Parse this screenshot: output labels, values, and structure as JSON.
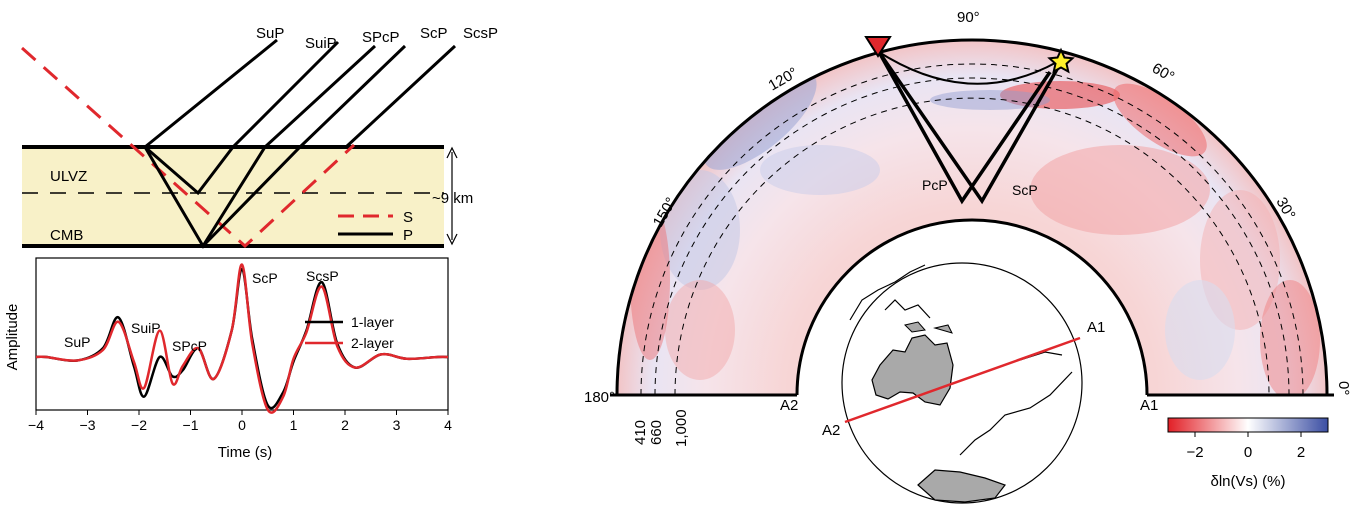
{
  "left_schematic": {
    "rays": [
      "SuP",
      "SuiP",
      "SPcP",
      "ScP",
      "ScsP"
    ],
    "layer_labels": {
      "ulvz": "ULVZ",
      "cmb": "CMB",
      "thickness": "~9 km"
    },
    "legend": {
      "s": "S",
      "p": "P"
    }
  },
  "waveform": {
    "ylabel": "Amplitude",
    "xlabel": "Time (s)",
    "xticks": [
      "−4",
      "−3",
      "−2",
      "−1",
      "0",
      "1",
      "2",
      "3",
      "4"
    ],
    "phase_labels": {
      "sup": "SuP",
      "suip": "SuiP",
      "spcp": "SPcP",
      "scp": "ScP",
      "scsp": "ScsP"
    },
    "legend": {
      "one_layer": "1-layer",
      "two_layer": "2-layer"
    },
    "colors": {
      "one_layer": "#000000",
      "two_layer": "#e0282d"
    }
  },
  "chart_data": {
    "type": "line",
    "xlabel": "Time (s)",
    "ylabel": "Amplitude",
    "xlim": [
      -4,
      4
    ],
    "x": [
      -3.8,
      -3.2,
      -2.7,
      -2.4,
      -2.1,
      -1.9,
      -1.6,
      -1.35,
      -1.15,
      -0.85,
      -0.55,
      -0.2,
      0.0,
      0.2,
      0.5,
      0.8,
      1.0,
      1.25,
      1.55,
      1.85,
      2.2,
      2.7,
      3.2,
      3.8
    ],
    "series": [
      {
        "name": "1-layer",
        "values": [
          0.0,
          -0.04,
          0.1,
          0.45,
          -0.1,
          -0.45,
          0.0,
          -0.22,
          -0.15,
          0.1,
          -0.25,
          0.3,
          1.0,
          0.2,
          -0.55,
          -0.4,
          -0.05,
          0.3,
          0.85,
          0.15,
          -0.12,
          0.03,
          -0.02,
          0.0
        ]
      },
      {
        "name": "2-layer",
        "values": [
          0.0,
          -0.04,
          0.08,
          0.4,
          -0.05,
          -0.35,
          0.3,
          -0.3,
          -0.1,
          0.1,
          -0.25,
          0.3,
          1.05,
          0.15,
          -0.6,
          -0.45,
          -0.02,
          0.28,
          0.8,
          0.12,
          -0.12,
          0.03,
          -0.02,
          0.0
        ]
      }
    ]
  },
  "cross_section": {
    "angle_labels": [
      "180°",
      "150°",
      "120°",
      "90°",
      "60°",
      "30°",
      "0°"
    ],
    "depth_labels": [
      "410",
      "660",
      "1,000"
    ],
    "endpoints": {
      "left": "A2",
      "right": "A1"
    },
    "phase_labels": {
      "pcp": "PcP",
      "scp": "ScP"
    },
    "globe_labels": {
      "a1": "A1",
      "a2": "A2"
    },
    "colorbar": {
      "ticks": [
        "−2",
        "0",
        "2"
      ],
      "label": "δln(Vs) (%)",
      "colors": [
        "#e21f26",
        "#ffffff",
        "#3b4ea3"
      ]
    }
  }
}
